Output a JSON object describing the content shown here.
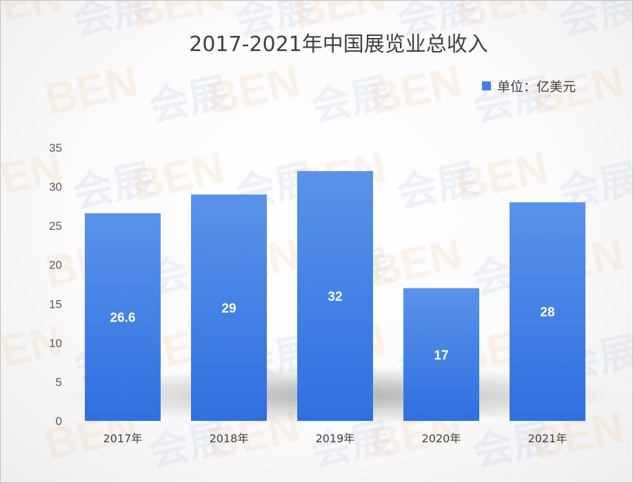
{
  "chart_data": {
    "type": "bar",
    "title": "2017-2021年中国展览业总收入",
    "legend": {
      "label": "单位：亿美元",
      "position": "top-right"
    },
    "categories": [
      "2017年",
      "2018年",
      "2019年",
      "2020年",
      "2021年"
    ],
    "series": [
      {
        "name": "单位：亿美元",
        "values": [
          26.6,
          29,
          32,
          17,
          28
        ],
        "color": "#3f7fe6"
      }
    ],
    "data_labels": [
      "26.6",
      "29",
      "32",
      "17",
      "28"
    ],
    "y_ticks": [
      0,
      5,
      10,
      15,
      20,
      25,
      30,
      35
    ],
    "ylim": [
      0,
      35
    ],
    "grid": false,
    "xlabel": "",
    "ylabel": ""
  },
  "watermark": {
    "text": "BEN",
    "text2": "会展"
  }
}
